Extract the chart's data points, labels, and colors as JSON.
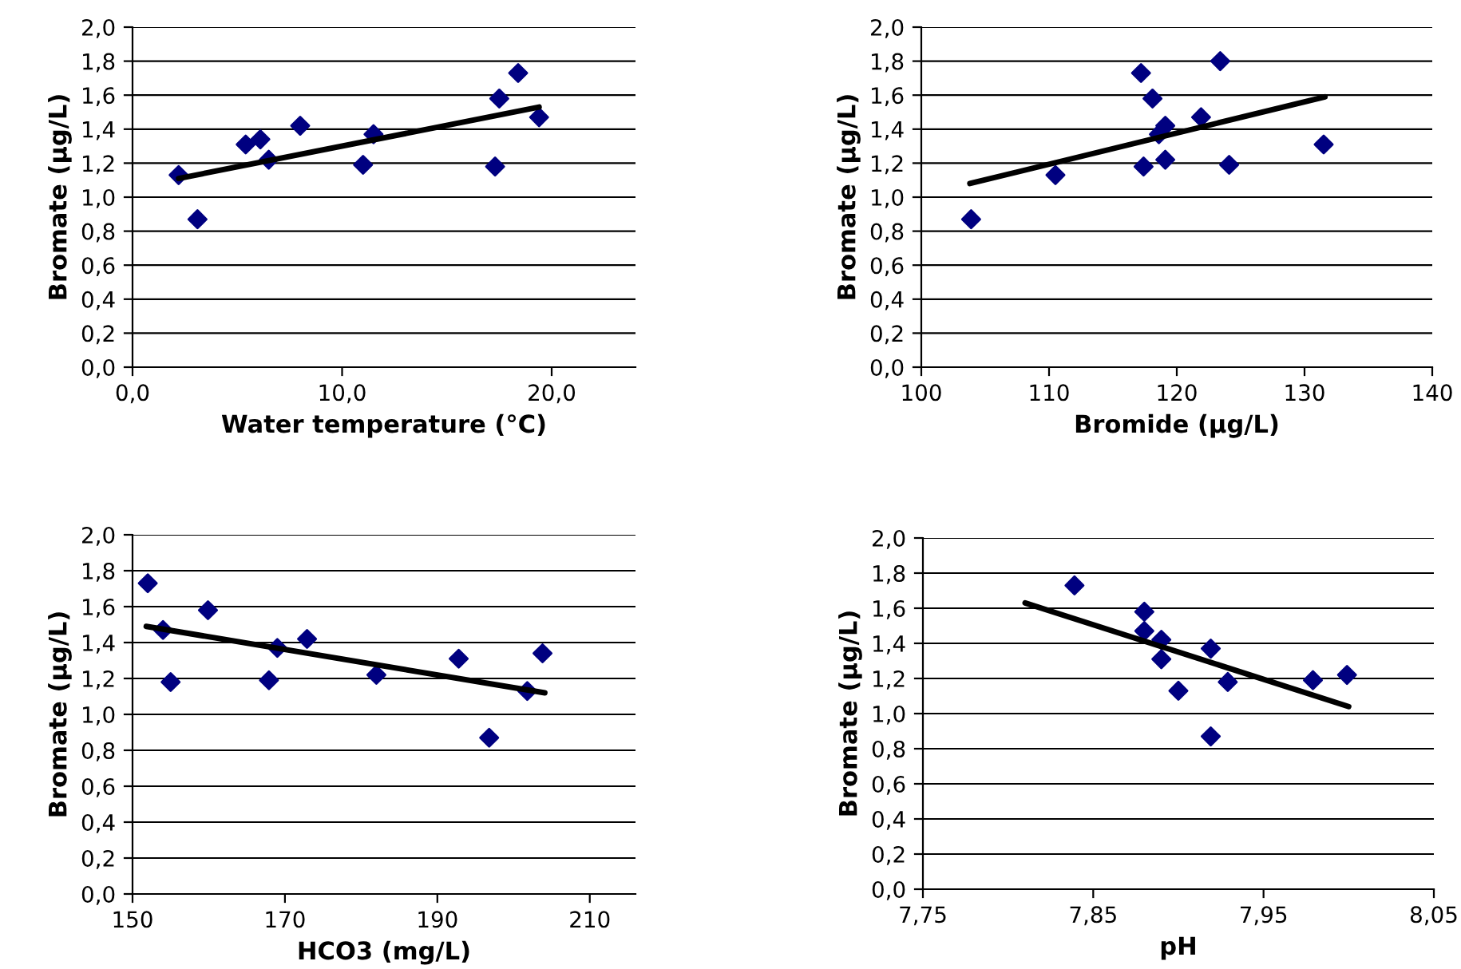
{
  "chart_data": [
    {
      "type": "scatter",
      "xlabel": "Water temperature (°C)",
      "ylabel": "Bromate (µg/L)",
      "xlim": [
        0,
        24
      ],
      "xticks": [
        {
          "value": 0,
          "label": "0,0"
        },
        {
          "value": 10,
          "label": "10,0"
        },
        {
          "value": 20,
          "label": "20,0"
        }
      ],
      "ylim": [
        0,
        2
      ],
      "yticks": [
        {
          "value": 0,
          "label": "0,0"
        },
        {
          "value": 0.2,
          "label": "0,2"
        },
        {
          "value": 0.4,
          "label": "0,4"
        },
        {
          "value": 0.6,
          "label": "0,6"
        },
        {
          "value": 0.8,
          "label": "0,8"
        },
        {
          "value": 1.0,
          "label": "1,0"
        },
        {
          "value": 1.2,
          "label": "1,2"
        },
        {
          "value": 1.4,
          "label": "1,4"
        },
        {
          "value": 1.6,
          "label": "1,6"
        },
        {
          "value": 1.8,
          "label": "1,8"
        },
        {
          "value": 2.0,
          "label": "2,0"
        }
      ],
      "grid": "y",
      "series": [
        {
          "color": "#000080",
          "marker": "diamond",
          "x": [
            2.2,
            3.1,
            5.4,
            6.1,
            6.5,
            8.0,
            11.0,
            11.5,
            17.3,
            17.5,
            18.4,
            19.4
          ],
          "values": [
            1.13,
            0.87,
            1.31,
            1.34,
            1.22,
            1.42,
            1.19,
            1.37,
            1.18,
            1.58,
            1.73,
            1.47
          ]
        },
        {
          "type": "line",
          "color": "#000000",
          "marker": "none",
          "line_style": "solid",
          "x": [
            2.2,
            19.4
          ],
          "values": [
            1.11,
            1.53
          ]
        }
      ]
    },
    {
      "type": "scatter",
      "xlabel": "Bromide (µg/L)",
      "ylabel": "Bromate (µg/L)",
      "xlim": [
        100,
        140
      ],
      "xticks": [
        100,
        110,
        120,
        130,
        140
      ],
      "ylim": [
        0,
        2
      ],
      "yticks": [
        {
          "value": 0,
          "label": "0,0"
        },
        {
          "value": 0.2,
          "label": "0,2"
        },
        {
          "value": 0.4,
          "label": "0,4"
        },
        {
          "value": 0.6,
          "label": "0,6"
        },
        {
          "value": 0.8,
          "label": "0,8"
        },
        {
          "value": 1.0,
          "label": "1,0"
        },
        {
          "value": 1.2,
          "label": "1,2"
        },
        {
          "value": 1.4,
          "label": "1,4"
        },
        {
          "value": 1.6,
          "label": "1,6"
        },
        {
          "value": 1.8,
          "label": "1,8"
        },
        {
          "value": 2.0,
          "label": "2,0"
        }
      ],
      "grid": "y",
      "series": [
        {
          "color": "#000080",
          "marker": "diamond",
          "x": [
            103.9,
            110.5,
            117.2,
            117.4,
            118.1,
            118.6,
            119.1,
            119.1,
            121.9,
            123.4,
            124.1,
            131.5
          ],
          "values": [
            0.87,
            1.13,
            1.73,
            1.18,
            1.58,
            1.37,
            1.42,
            1.22,
            1.47,
            1.8,
            1.19,
            1.31
          ]
        },
        {
          "type": "line",
          "color": "#000000",
          "marker": "none",
          "line_style": "solid",
          "x": [
            103.8,
            131.6
          ],
          "values": [
            1.08,
            1.59
          ]
        }
      ]
    },
    {
      "type": "scatter",
      "xlabel": "HCO3 (mg/L)",
      "ylabel": "Bromate (µg/L)",
      "xlim": [
        150,
        216
      ],
      "xticks": [
        150,
        170,
        190,
        210
      ],
      "ylim": [
        0,
        2
      ],
      "yticks": [
        {
          "value": 0,
          "label": "0,0"
        },
        {
          "value": 0.2,
          "label": "0,2"
        },
        {
          "value": 0.4,
          "label": "0,4"
        },
        {
          "value": 0.6,
          "label": "0,6"
        },
        {
          "value": 0.8,
          "label": "0,8"
        },
        {
          "value": 1.0,
          "label": "1,0"
        },
        {
          "value": 1.2,
          "label": "1,2"
        },
        {
          "value": 1.4,
          "label": "1,4"
        },
        {
          "value": 1.6,
          "label": "1,6"
        },
        {
          "value": 1.8,
          "label": "1,8"
        },
        {
          "value": 2.0,
          "label": "2,0"
        }
      ],
      "grid": "y",
      "series": [
        {
          "color": "#000080",
          "marker": "diamond",
          "x": [
            152.0,
            154.0,
            155.0,
            159.9,
            167.9,
            169.0,
            172.9,
            182.0,
            192.8,
            196.8,
            201.8,
            203.8
          ],
          "values": [
            1.73,
            1.47,
            1.18,
            1.58,
            1.19,
            1.37,
            1.42,
            1.22,
            1.31,
            0.87,
            1.13,
            1.34
          ]
        },
        {
          "type": "line",
          "color": "#000000",
          "marker": "none",
          "line_style": "solid",
          "x": [
            151.8,
            204.1
          ],
          "values": [
            1.49,
            1.12
          ]
        }
      ]
    },
    {
      "type": "scatter",
      "xlabel": "pH",
      "ylabel": "Bromate (µg/L)",
      "xlim": [
        7.75,
        8.05
      ],
      "xticks": [
        {
          "value": 7.75,
          "label": "7,75"
        },
        {
          "value": 7.85,
          "label": "7,85"
        },
        {
          "value": 7.95,
          "label": "7,95"
        },
        {
          "value": 8.05,
          "label": "8,05"
        }
      ],
      "ylim": [
        0,
        2
      ],
      "yticks": [
        {
          "value": 0,
          "label": "0,0"
        },
        {
          "value": 0.2,
          "label": "0,2"
        },
        {
          "value": 0.4,
          "label": "0,4"
        },
        {
          "value": 0.6,
          "label": "0,6"
        },
        {
          "value": 0.8,
          "label": "0,8"
        },
        {
          "value": 1.0,
          "label": "1,0"
        },
        {
          "value": 1.2,
          "label": "1,2"
        },
        {
          "value": 1.4,
          "label": "1,4"
        },
        {
          "value": 1.6,
          "label": "1,6"
        },
        {
          "value": 1.8,
          "label": "1,8"
        },
        {
          "value": 2.0,
          "label": "2,0"
        }
      ],
      "grid": "y",
      "series": [
        {
          "color": "#000080",
          "marker": "diamond",
          "x": [
            7.839,
            7.88,
            7.88,
            7.89,
            7.89,
            7.9,
            7.919,
            7.919,
            7.929,
            7.979,
            7.999
          ],
          "values": [
            1.73,
            1.58,
            1.47,
            1.42,
            1.31,
            1.13,
            1.37,
            0.87,
            1.18,
            1.19,
            1.22
          ]
        },
        {
          "type": "line",
          "color": "#000000",
          "marker": "none",
          "line_style": "solid",
          "x": [
            7.81,
            8.0
          ],
          "values": [
            1.63,
            1.04
          ]
        }
      ]
    }
  ]
}
